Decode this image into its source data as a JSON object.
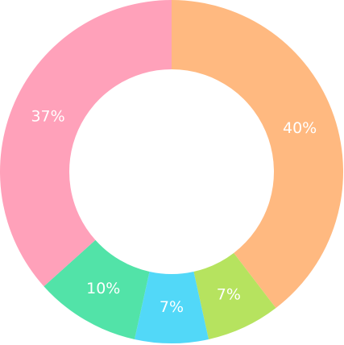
{
  "chart_data": {
    "type": "pie",
    "variant": "donut",
    "start_angle": "top",
    "direction": "clockwise",
    "legend": "none",
    "slices": [
      {
        "label": "40%",
        "value": 40,
        "color": "#ffb980"
      },
      {
        "label": "7%",
        "value": 7,
        "color": "#b6e35f"
      },
      {
        "label": "7%",
        "value": 7,
        "color": "#52d8f8"
      },
      {
        "label": "10%",
        "value": 10,
        "color": "#52e3a8"
      },
      {
        "label": "37%",
        "value": 37,
        "color": "#ffa1ba"
      }
    ]
  }
}
